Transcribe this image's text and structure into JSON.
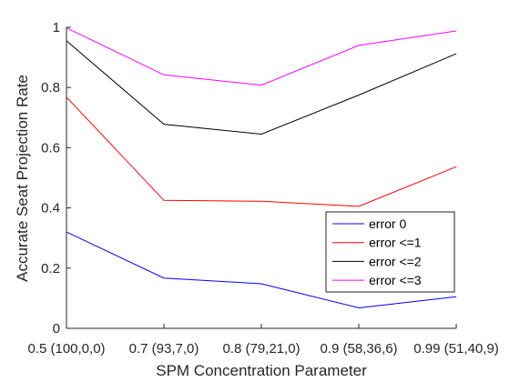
{
  "chart_data": {
    "type": "line",
    "title": "",
    "xlabel": "SPM Concentration Parameter",
    "ylabel": "Accurate Seat Projection Rate",
    "categories": [
      "0.5 (100,0,0)",
      "0.7 (93,7,0)",
      "0.8 (79,21,0)",
      "0.9 (58,36,6)",
      "0.99 (51,40,9)"
    ],
    "ylim": [
      0,
      1
    ],
    "yticks": [
      "0",
      "0.2",
      "0.4",
      "0.6",
      "0.8",
      "1"
    ],
    "grid": false,
    "legend_position": "bottom-right",
    "series": [
      {
        "name": "error 0",
        "color": "#0000ff",
        "values": [
          0.32,
          0.167,
          0.148,
          0.068,
          0.105
        ]
      },
      {
        "name": "error <=1",
        "color": "#ff0000",
        "values": [
          0.768,
          0.425,
          0.422,
          0.405,
          0.537
        ]
      },
      {
        "name": "error <=2",
        "color": "#000000",
        "values": [
          0.955,
          0.678,
          0.645,
          0.775,
          0.912
        ]
      },
      {
        "name": "error <=3",
        "color": "#ff00ff",
        "values": [
          0.998,
          0.842,
          0.808,
          0.94,
          0.988
        ]
      }
    ]
  }
}
